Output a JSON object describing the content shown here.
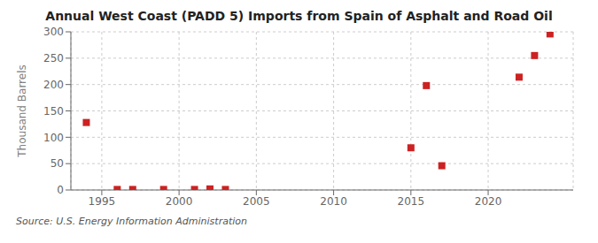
{
  "chart_data": {
    "type": "scatter",
    "title": "Annual West Coast (PADD 5) Imports from Spain of Asphalt and Road Oil",
    "ylabel": "Thousand Barrels",
    "annotation": "Source: U.S. Energy Information Administration",
    "x": [
      1994,
      1996,
      1997,
      1999,
      2001,
      2002,
      2003,
      2015,
      2016,
      2017,
      2022,
      2023,
      2024
    ],
    "values": [
      128,
      1,
      1,
      1,
      1,
      2,
      1,
      80,
      198,
      46,
      214,
      255,
      296
    ],
    "xlim": [
      1993.0,
      2025.5
    ],
    "ylim": [
      0,
      300
    ],
    "xticks": [
      1995,
      2000,
      2005,
      2010,
      2015,
      2020
    ],
    "yticks": [
      0,
      50,
      100,
      150,
      200,
      250,
      300
    ],
    "color": "#cc2222",
    "marker": "square",
    "grid": true
  }
}
